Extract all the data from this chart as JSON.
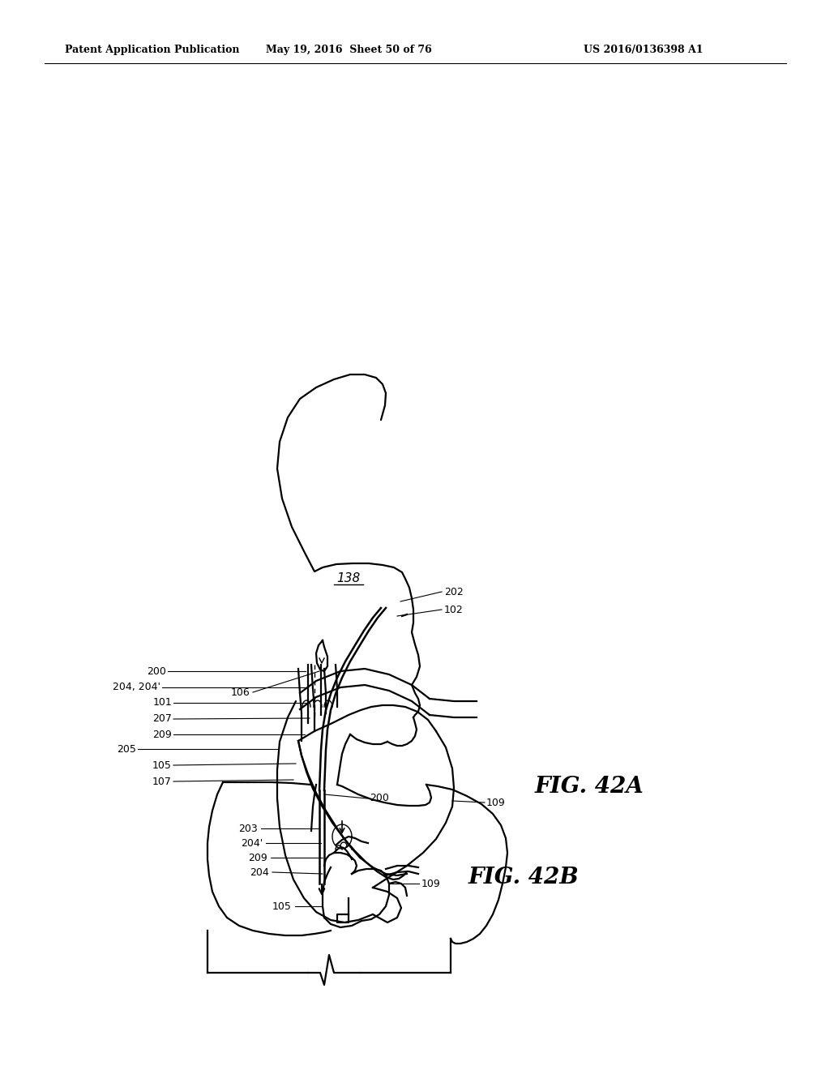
{
  "background_color": "#ffffff",
  "header_left": "Patent Application Publication",
  "header_center": "May 19, 2016  Sheet 50 of 76",
  "header_right": "US 2016/0136398 A1",
  "fig_42a_label": "FIG. 42A",
  "fig_42b_label": "FIG. 42B",
  "line_color": "#000000",
  "lw_body": 1.6,
  "lw_thin": 1.0,
  "lw_catheter": 1.8,
  "header_fontsize": 9,
  "ann_fontsize": 9,
  "fig_label_fontsize": 20
}
